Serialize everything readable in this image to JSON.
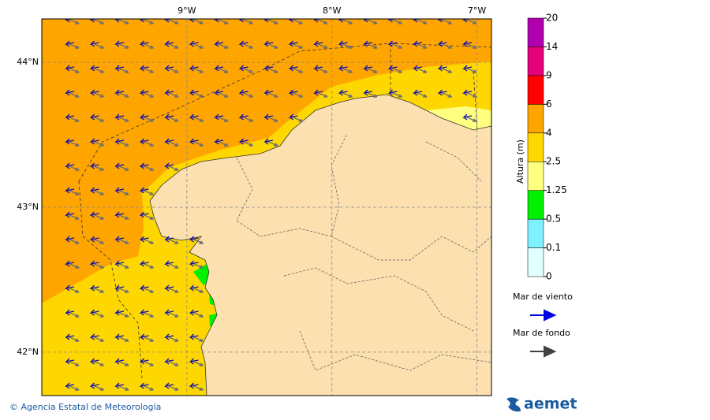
{
  "map": {
    "lon_range": [
      -10,
      -6.9
    ],
    "lat_range": [
      41.7,
      44.3
    ],
    "lon_ticks": [
      {
        "value": -9,
        "label": "9°W"
      },
      {
        "value": -8,
        "label": "8°W"
      },
      {
        "value": -7,
        "label": "7°W"
      }
    ],
    "lat_ticks": [
      {
        "value": 44,
        "label": "44°N"
      },
      {
        "value": 43,
        "label": "43°N"
      },
      {
        "value": 42,
        "label": "42°N"
      }
    ]
  },
  "colorbar": {
    "label": "Altura (m)",
    "levels": [
      0,
      0.1,
      0.5,
      1.25,
      2.5,
      4,
      6,
      9,
      14,
      20
    ],
    "colors": [
      "#e0ffff",
      "#80f0ff",
      "#00f000",
      "#ffff80",
      "#ffd700",
      "#ffa500",
      "#ff0000",
      "#e6007a",
      "#b000b0"
    ]
  },
  "legend": [
    {
      "label": "Mar de viento",
      "color": "#0000e0"
    },
    {
      "label": "Mar de fondo",
      "color": "#404040"
    }
  ],
  "footer": {
    "credit": "© Agencia Estatal de Meteorología",
    "logo": "aemet"
  }
}
